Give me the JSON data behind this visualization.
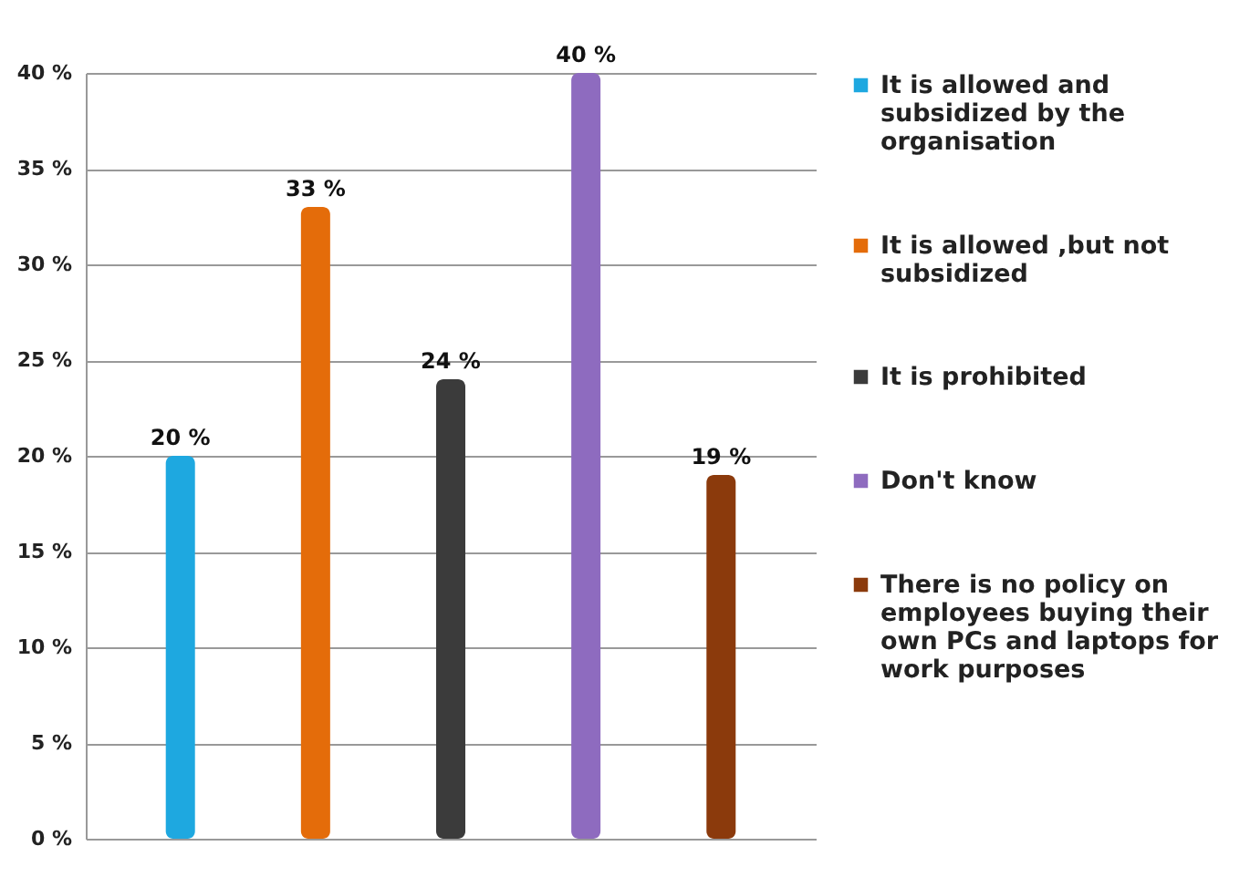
{
  "chart_data": {
    "type": "bar",
    "categories": [
      null,
      null,
      null,
      null,
      null
    ],
    "series": [
      {
        "name": "It is allowed and subsidized by the organisation",
        "color": "#1ea8e0",
        "values": [
          20,
          null,
          null,
          null,
          null
        ],
        "value_labels": [
          "20 %",
          null,
          null,
          null,
          null
        ]
      },
      {
        "name": "It is allowed ,but not subsidized",
        "color": "#e46c0a",
        "values": [
          null,
          33,
          null,
          null,
          null
        ],
        "value_labels": [
          null,
          "33 %",
          null,
          null,
          null
        ]
      },
      {
        "name": "It is prohibited",
        "color": "#3b3b3b",
        "values": [
          null,
          null,
          24,
          null,
          null
        ],
        "value_labels": [
          null,
          null,
          "24 %",
          null,
          null
        ]
      },
      {
        "name": "Don't know",
        "color": "#8e6bbf",
        "values": [
          null,
          null,
          null,
          40,
          null
        ],
        "value_labels": [
          null,
          null,
          null,
          "40 %",
          null
        ]
      },
      {
        "name": "There is no policy on employees buying their own PCs and laptops for work purposes",
        "color": "#8b3a0c",
        "values": [
          null,
          null,
          null,
          null,
          19
        ],
        "value_labels": [
          null,
          null,
          null,
          null,
          "19 %"
        ]
      }
    ],
    "ylim": [
      0,
      40
    ],
    "yticks": [
      {
        "value": 0,
        "label": "0 %"
      },
      {
        "value": 5,
        "label": "5 %"
      },
      {
        "value": 10,
        "label": "10 %"
      },
      {
        "value": 15,
        "label": "15 %"
      },
      {
        "value": 20,
        "label": "20 %"
      },
      {
        "value": 25,
        "label": "25 %"
      },
      {
        "value": 30,
        "label": "30 %"
      },
      {
        "value": 35,
        "label": "35 %"
      },
      {
        "value": 40,
        "label": "40 %"
      }
    ],
    "grid": "y",
    "legend": "right",
    "tick_labels": "y"
  }
}
